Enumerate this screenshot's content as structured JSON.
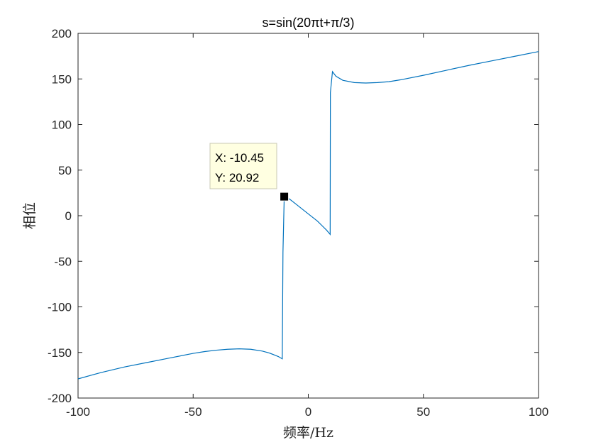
{
  "chart_data": {
    "type": "line",
    "title": "s=sin(20πt+π/3)",
    "xlabel": "频率/Hz",
    "ylabel": "相位",
    "xlim": [
      -100,
      100
    ],
    "ylim": [
      -200,
      200
    ],
    "xticks": [
      -100,
      -50,
      0,
      50,
      100
    ],
    "yticks": [
      -200,
      -150,
      -100,
      -50,
      0,
      50,
      100,
      150,
      200
    ],
    "grid": false,
    "series_color": "#0072BD",
    "series": [
      {
        "x": [
          -100,
          -90,
          -80,
          -70,
          -60,
          -50,
          -45,
          -40,
          -35,
          -30,
          -25,
          -20,
          -17,
          -15,
          -13,
          -11.3,
          -11.0,
          -10.45,
          -8,
          -5,
          -2,
          0,
          2,
          4,
          6,
          8,
          9.5,
          9.6,
          10.5,
          12,
          15,
          20,
          25,
          30,
          35,
          40,
          50,
          60,
          70,
          80,
          90,
          100
        ],
        "y": [
          -179,
          -172,
          -166,
          -161,
          -156,
          -151,
          -149,
          -147.5,
          -146.5,
          -146,
          -146.5,
          -148.5,
          -150.5,
          -152.5,
          -154.5,
          -157,
          -40,
          20.92,
          18,
          12,
          6,
          2,
          -2,
          -6,
          -11,
          -16,
          -20.5,
          135,
          158,
          153,
          148.5,
          146,
          145.5,
          146,
          147,
          149,
          154,
          159.5,
          165,
          170,
          175,
          180
        ]
      }
    ],
    "datatip": {
      "x": -10.45,
      "y": 20.92,
      "x_label": "X: -10.45",
      "y_label": "Y: 20.92"
    }
  }
}
